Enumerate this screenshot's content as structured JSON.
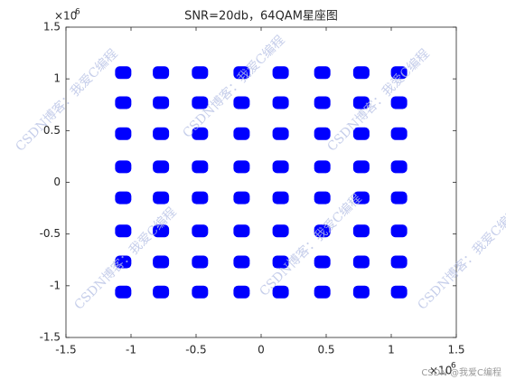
{
  "chart_data": {
    "type": "scatter",
    "title": "SNR=20db，64QAM星座图",
    "x": [
      -1060000,
      -770000,
      -470000,
      -150000,
      150000,
      470000,
      770000,
      1060000,
      -1060000,
      -770000,
      -470000,
      -150000,
      150000,
      470000,
      770000,
      1060000,
      -1060000,
      -770000,
      -470000,
      -150000,
      150000,
      470000,
      770000,
      1060000,
      -1060000,
      -770000,
      -470000,
      -150000,
      150000,
      470000,
      770000,
      1060000,
      -1060000,
      -770000,
      -470000,
      -150000,
      150000,
      470000,
      770000,
      1060000,
      -1060000,
      -770000,
      -470000,
      -150000,
      150000,
      470000,
      770000,
      1060000,
      -1060000,
      -770000,
      -470000,
      -150000,
      150000,
      470000,
      770000,
      1060000,
      -1060000,
      -770000,
      -470000,
      -150000,
      150000,
      470000,
      770000,
      1060000
    ],
    "values": [
      1060000,
      1060000,
      1060000,
      1060000,
      1060000,
      1060000,
      1060000,
      1060000,
      770000,
      770000,
      770000,
      770000,
      770000,
      770000,
      770000,
      770000,
      470000,
      470000,
      470000,
      470000,
      470000,
      470000,
      470000,
      470000,
      150000,
      150000,
      150000,
      150000,
      150000,
      150000,
      150000,
      150000,
      -150000,
      -150000,
      -150000,
      -150000,
      -150000,
      -150000,
      -150000,
      -150000,
      -470000,
      -470000,
      -470000,
      -470000,
      -470000,
      -470000,
      -470000,
      -470000,
      -770000,
      -770000,
      -770000,
      -770000,
      -770000,
      -770000,
      -770000,
      -770000,
      -1060000,
      -1060000,
      -1060000,
      -1060000,
      -1060000,
      -1060000,
      -1060000,
      -1060000
    ],
    "color": "#0000ff",
    "xlim": [
      -1500000,
      1500000
    ],
    "ylim": [
      -1500000,
      1500000
    ],
    "xticks": [
      {
        "value": -1500000,
        "label": "-1.5"
      },
      {
        "value": -1000000,
        "label": "-1"
      },
      {
        "value": -500000,
        "label": "-0.5"
      },
      0,
      {
        "value": 500000,
        "label": "0.5"
      },
      {
        "value": 1000000,
        "label": "1"
      },
      {
        "value": 1500000,
        "label": "1.5"
      }
    ],
    "yticks": [
      {
        "value": -1500000,
        "label": "-1.5"
      },
      {
        "value": -1000000,
        "label": "-1"
      },
      {
        "value": -500000,
        "label": "-0.5"
      },
      0,
      {
        "value": 500000,
        "label": "0.5"
      },
      {
        "value": 1000000,
        "label": "1"
      },
      {
        "value": 1500000,
        "label": "1.5"
      }
    ],
    "x_exponent": {
      "base": "×10",
      "power": "6"
    },
    "y_exponent": {
      "base": "×10",
      "power": "6"
    }
  },
  "watermark": "CSDN博客：我爱C编程",
  "credit": "CSDN @我爱C编程"
}
